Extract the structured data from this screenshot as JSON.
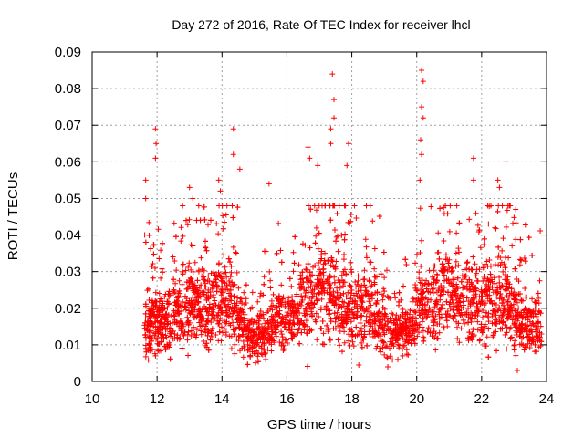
{
  "chart_data": {
    "type": "scatter",
    "title": "Day 272 of 2016, Rate Of TEC Index for receiver lhcl",
    "xlabel": "GPS time / hours",
    "ylabel": "ROTI / TECUs",
    "xlim": [
      10,
      24
    ],
    "ylim": [
      0,
      0.09
    ],
    "x_ticks": [
      "10",
      "12",
      "14",
      "16",
      "18",
      "20",
      "22",
      "24"
    ],
    "y_ticks": [
      "0",
      "0.01",
      "0.02",
      "0.03",
      "0.04",
      "0.05",
      "0.06",
      "0.07",
      "0.08",
      "0.09"
    ],
    "grid": true,
    "marker": "+",
    "marker_color": "#ff0000",
    "series": [
      {
        "x_range": [
          11.6,
          23.85
        ],
        "point_count": 3500,
        "notable_points": [
          {
            "x": 11.65,
            "y": 0.055
          },
          {
            "x": 11.65,
            "y": 0.05
          },
          {
            "x": 11.62,
            "y": 0.04
          },
          {
            "x": 11.95,
            "y": 0.069
          },
          {
            "x": 11.97,
            "y": 0.065
          },
          {
            "x": 11.95,
            "y": 0.061
          },
          {
            "x": 13.0,
            "y": 0.053
          },
          {
            "x": 13.1,
            "y": 0.05
          },
          {
            "x": 13.9,
            "y": 0.055
          },
          {
            "x": 13.95,
            "y": 0.052
          },
          {
            "x": 14.35,
            "y": 0.069
          },
          {
            "x": 14.35,
            "y": 0.062
          },
          {
            "x": 14.55,
            "y": 0.058
          },
          {
            "x": 15.45,
            "y": 0.054
          },
          {
            "x": 16.65,
            "y": 0.064
          },
          {
            "x": 16.7,
            "y": 0.061
          },
          {
            "x": 16.95,
            "y": 0.059
          },
          {
            "x": 17.4,
            "y": 0.084
          },
          {
            "x": 17.45,
            "y": 0.077
          },
          {
            "x": 17.45,
            "y": 0.072
          },
          {
            "x": 17.35,
            "y": 0.069
          },
          {
            "x": 17.35,
            "y": 0.065
          },
          {
            "x": 17.9,
            "y": 0.065
          },
          {
            "x": 17.85,
            "y": 0.059
          },
          {
            "x": 20.15,
            "y": 0.085
          },
          {
            "x": 20.2,
            "y": 0.082
          },
          {
            "x": 20.15,
            "y": 0.075
          },
          {
            "x": 20.2,
            "y": 0.072
          },
          {
            "x": 20.12,
            "y": 0.066
          },
          {
            "x": 20.15,
            "y": 0.062
          },
          {
            "x": 20.1,
            "y": 0.055
          },
          {
            "x": 21.75,
            "y": 0.061
          },
          {
            "x": 21.75,
            "y": 0.055
          },
          {
            "x": 22.5,
            "y": 0.055
          },
          {
            "x": 22.55,
            "y": 0.053
          },
          {
            "x": 22.75,
            "y": 0.06
          },
          {
            "x": 23.05,
            "y": 0.047
          },
          {
            "x": 23.1,
            "y": 0.003
          }
        ]
      }
    ]
  }
}
